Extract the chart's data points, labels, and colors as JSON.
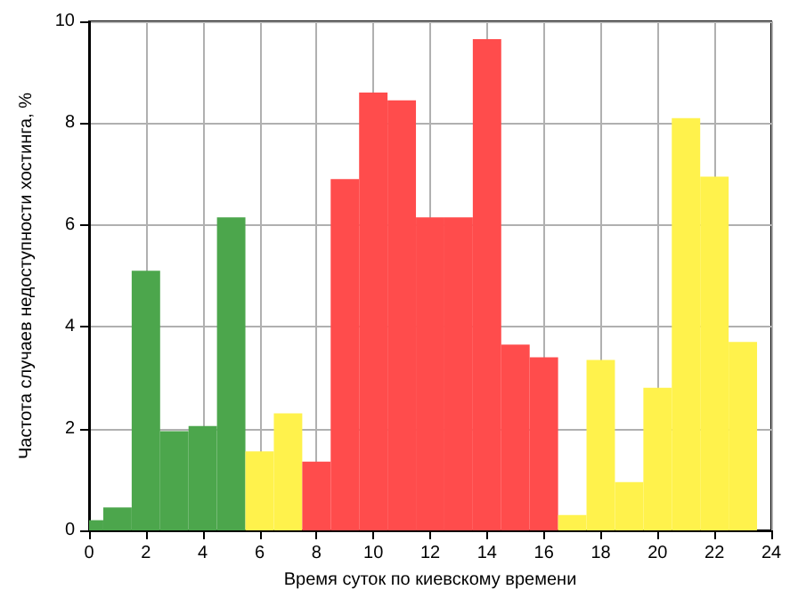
{
  "chart_data": {
    "type": "histogram",
    "xlabel": "Время суток по киевскому времени",
    "ylabel": "Частота случаев недоступности хостинга, %",
    "bins": [
      0,
      0.5,
      1.5,
      2.5,
      3.5,
      4.5,
      5.5,
      6.5,
      7.5,
      8.5,
      9.5,
      10.5,
      11.5,
      12.5,
      13.5,
      14.5,
      15.5,
      16.5,
      17.5,
      18.5,
      19.5,
      20.5,
      21.5,
      22.5,
      23.5
    ],
    "values": [
      0.2,
      0.45,
      5.1,
      1.95,
      2.05,
      6.15,
      1.55,
      2.3,
      1.35,
      6.9,
      8.6,
      8.45,
      6.15,
      6.15,
      9.65,
      3.65,
      3.4,
      0.3,
      3.35,
      0.95,
      2.8,
      8.1,
      6.95,
      3.7
    ],
    "colors": [
      "#4ca64c",
      "#4ca64c",
      "#4ca64c",
      "#4ca64c",
      "#4ca64c",
      "#4ca64c",
      "#fff24c",
      "#fff24c",
      "#ff4c4c",
      "#ff4c4c",
      "#ff4c4c",
      "#ff4c4c",
      "#ff4c4c",
      "#ff4c4c",
      "#ff4c4c",
      "#ff4c4c",
      "#ff4c4c",
      "#fff24c",
      "#fff24c",
      "#fff24c",
      "#fff24c",
      "#fff24c",
      "#fff24c",
      "#fff24c"
    ],
    "xlim": [
      0,
      24
    ],
    "xticks": [
      0,
      2,
      4,
      6,
      8,
      10,
      12,
      14,
      16,
      18,
      20,
      22,
      24
    ],
    "ylim": [
      0,
      10
    ],
    "yticks": [
      0,
      2,
      4,
      6,
      8,
      10
    ],
    "grid": true
  }
}
